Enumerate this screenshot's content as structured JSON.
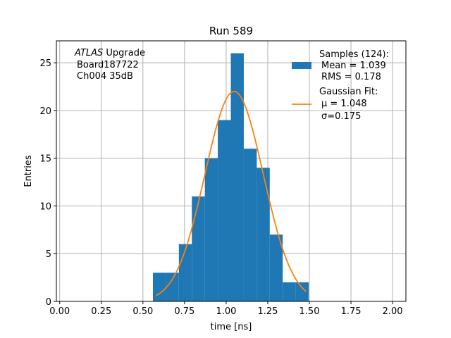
{
  "chart_data": {
    "type": "bar",
    "title": "Run 589",
    "xlabel": "time [ns]",
    "ylabel": "Entries",
    "xlim": [
      -0.02,
      2.08
    ],
    "ylim": [
      0,
      27.3
    ],
    "xticks": [
      0.0,
      0.25,
      0.5,
      0.75,
      1.0,
      1.25,
      1.5,
      1.75,
      2.0
    ],
    "xtick_labels": [
      "0.00",
      "0.25",
      "0.50",
      "0.75",
      "1.00",
      "1.25",
      "1.50",
      "1.75",
      "2.00"
    ],
    "yticks": [
      0,
      5,
      10,
      15,
      20,
      25
    ],
    "ytick_labels": [
      "0",
      "5",
      "10",
      "15",
      "20",
      "25"
    ],
    "grid": true,
    "legend_position": "top-right",
    "histogram": {
      "name": "Samples (124):",
      "color": "#1f77b4",
      "bin_edges": [
        0.56,
        0.638,
        0.716,
        0.794,
        0.872,
        0.95,
        1.028,
        1.106,
        1.184,
        1.262,
        1.34,
        1.418,
        1.496
      ],
      "counts": [
        3,
        3,
        6,
        11,
        15,
        19,
        26,
        16,
        14,
        7,
        2,
        2
      ]
    },
    "fit": {
      "name": "Gaussian Fit:",
      "color": "#ff7f0e",
      "mu": 1.048,
      "sigma": 0.175,
      "amplitude": 22.0,
      "x_start": 0.58,
      "x_end": 1.48
    },
    "legend": {
      "samples_label": "Samples (124):",
      "samples_mean": "Mean = 1.039",
      "samples_rms": "RMS = 0.178",
      "fit_label": "Gaussian Fit:",
      "fit_mu": "μ = 1.048",
      "fit_sigma": "σ=0.175"
    },
    "annotation": {
      "line1_italic": "ATLAS",
      "line1_rest": " Upgrade",
      "line2": "Board187722",
      "line3": "Ch004 35dB"
    }
  }
}
